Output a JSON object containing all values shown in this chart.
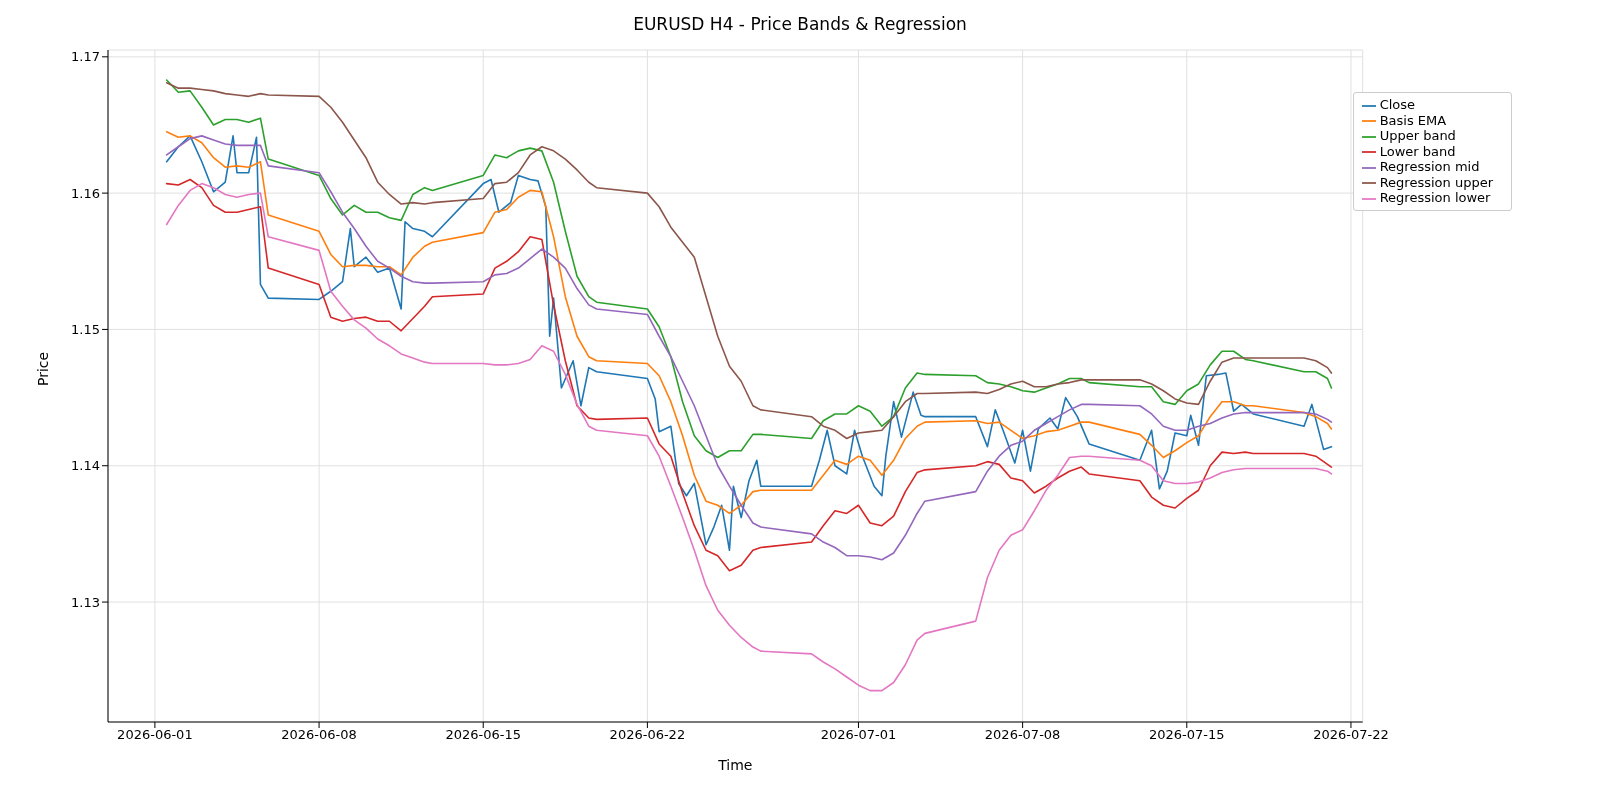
{
  "chart_data": {
    "type": "line",
    "title": "EURUSD H4 - Price Bands & Regression",
    "xlabel": "Time",
    "ylabel": "Price",
    "xlim": [
      "2026-05-30T00:00",
      "2026-07-22T12:00"
    ],
    "xticks": [
      "2026-06-01",
      "2026-06-08",
      "2026-06-15",
      "2026-06-22",
      "2026-07-01",
      "2026-07-08",
      "2026-07-15",
      "2026-07-22"
    ],
    "ylim": [
      1.1212,
      1.1705
    ],
    "yticks": [
      1.13,
      1.14,
      1.15,
      1.16,
      1.17
    ],
    "grid": true,
    "legend": "top right",
    "x": [
      "2026-06-01T12:00",
      "2026-06-02T00:00",
      "2026-06-02T12:00",
      "2026-06-03T00:00",
      "2026-06-03T12:00",
      "2026-06-04T00:00",
      "2026-06-04T12:00",
      "2026-06-05T00:00",
      "2026-06-05T12:00",
      "2026-06-05T20:00",
      "2026-06-08T00:00",
      "2026-06-08T12:00",
      "2026-06-09T00:00",
      "2026-06-09T12:00",
      "2026-06-10T00:00",
      "2026-06-10T12:00",
      "2026-06-11T00:00",
      "2026-06-11T12:00",
      "2026-06-12T00:00",
      "2026-06-12T12:00",
      "2026-06-12T20:00",
      "2026-06-15T00:00",
      "2026-06-15T12:00",
      "2026-06-16T00:00",
      "2026-06-16T12:00",
      "2026-06-17T00:00",
      "2026-06-17T12:00",
      "2026-06-18T00:00",
      "2026-06-18T12:00",
      "2026-06-19T00:00",
      "2026-06-19T12:00",
      "2026-06-19T20:00",
      "2026-06-22T00:00",
      "2026-06-22T12:00",
      "2026-06-23T00:00",
      "2026-06-23T12:00",
      "2026-06-24T00:00",
      "2026-06-24T12:00",
      "2026-06-25T00:00",
      "2026-06-25T12:00",
      "2026-06-26T00:00",
      "2026-06-26T12:00",
      "2026-06-26T20:00",
      "2026-06-29T00:00",
      "2026-06-29T12:00",
      "2026-06-30T00:00",
      "2026-06-30T12:00",
      "2026-07-01T00:00",
      "2026-07-01T12:00",
      "2026-07-02T00:00",
      "2026-07-02T12:00",
      "2026-07-03T00:00",
      "2026-07-03T12:00",
      "2026-07-03T20:00",
      "2026-07-06T00:00",
      "2026-07-06T12:00",
      "2026-07-07T00:00",
      "2026-07-07T12:00",
      "2026-07-08T00:00",
      "2026-07-08T12:00",
      "2026-07-09T00:00",
      "2026-07-09T12:00",
      "2026-07-10T00:00",
      "2026-07-10T12:00",
      "2026-07-10T20:00",
      "2026-07-13T00:00",
      "2026-07-13T12:00",
      "2026-07-14T00:00",
      "2026-07-14T12:00",
      "2026-07-15T00:00",
      "2026-07-15T12:00",
      "2026-07-16T00:00",
      "2026-07-16T12:00",
      "2026-07-17T00:00",
      "2026-07-17T12:00",
      "2026-07-17T20:00",
      "2026-07-20T00:00",
      "2026-07-20T12:00",
      "2026-07-21T00:00",
      "2026-07-21T04:00"
    ],
    "series": [
      {
        "name": "Close",
        "color": "#1f77b4",
        "x": [
          "2026-06-01T12:00",
          "2026-06-02T00:00",
          "2026-06-02T12:00",
          "2026-06-03T00:00",
          "2026-06-03T12:00",
          "2026-06-04T00:00",
          "2026-06-04T08:00",
          "2026-06-04T12:00",
          "2026-06-05T00:00",
          "2026-06-05T08:00",
          "2026-06-05T12:00",
          "2026-06-05T20:00",
          "2026-06-08T00:00",
          "2026-06-08T12:00",
          "2026-06-09T00:00",
          "2026-06-09T08:00",
          "2026-06-09T12:00",
          "2026-06-10T00:00",
          "2026-06-10T12:00",
          "2026-06-11T00:00",
          "2026-06-11T12:00",
          "2026-06-11T16:00",
          "2026-06-12T00:00",
          "2026-06-12T12:00",
          "2026-06-12T20:00",
          "2026-06-15T00:00",
          "2026-06-15T08:00",
          "2026-06-15T16:00",
          "2026-06-16T04:00",
          "2026-06-16T12:00",
          "2026-06-17T00:00",
          "2026-06-17T08:00",
          "2026-06-17T16:00",
          "2026-06-17T20:00",
          "2026-06-18T00:00",
          "2026-06-18T08:00",
          "2026-06-18T20:00",
          "2026-06-19T04:00",
          "2026-06-19T12:00",
          "2026-06-19T20:00",
          "2026-06-22T00:00",
          "2026-06-22T08:00",
          "2026-06-22T12:00",
          "2026-06-23T00:00",
          "2026-06-23T08:00",
          "2026-06-23T16:00",
          "2026-06-24T00:00",
          "2026-06-24T12:00",
          "2026-06-24T20:00",
          "2026-06-25T04:00",
          "2026-06-25T12:00",
          "2026-06-25T16:00",
          "2026-06-26T00:00",
          "2026-06-26T08:00",
          "2026-06-26T16:00",
          "2026-06-26T20:00",
          "2026-06-29T00:00",
          "2026-06-29T08:00",
          "2026-06-29T16:00",
          "2026-06-30T00:00",
          "2026-06-30T12:00",
          "2026-06-30T20:00",
          "2026-07-01T04:00",
          "2026-07-01T16:00",
          "2026-07-02T00:00",
          "2026-07-02T04:00",
          "2026-07-02T12:00",
          "2026-07-02T20:00",
          "2026-07-03T08:00",
          "2026-07-03T16:00",
          "2026-07-03T20:00",
          "2026-07-06T00:00",
          "2026-07-06T12:00",
          "2026-07-06T20:00",
          "2026-07-07T04:00",
          "2026-07-07T16:00",
          "2026-07-08T00:00",
          "2026-07-08T08:00",
          "2026-07-08T16:00",
          "2026-07-09T04:00",
          "2026-07-09T12:00",
          "2026-07-09T20:00",
          "2026-07-10T08:00",
          "2026-07-10T20:00",
          "2026-07-13T00:00",
          "2026-07-13T12:00",
          "2026-07-13T20:00",
          "2026-07-14T04:00",
          "2026-07-14T12:00",
          "2026-07-15T00:00",
          "2026-07-15T04:00",
          "2026-07-15T12:00",
          "2026-07-15T20:00",
          "2026-07-16T08:00",
          "2026-07-16T16:00",
          "2026-07-17T00:00",
          "2026-07-17T08:00",
          "2026-07-17T20:00",
          "2026-07-20T00:00",
          "2026-07-20T08:00",
          "2026-07-20T20:00",
          "2026-07-21T04:00"
        ],
        "values": [
          1.1623,
          1.1634,
          1.1642,
          1.1623,
          1.1601,
          1.1608,
          1.1642,
          1.1615,
          1.1615,
          1.1641,
          1.1533,
          1.1523,
          1.1522,
          1.1528,
          1.1535,
          1.1574,
          1.1546,
          1.1553,
          1.1542,
          1.1545,
          1.1515,
          1.1579,
          1.1574,
          1.1572,
          1.1568,
          1.1607,
          1.161,
          1.1586,
          1.1593,
          1.1613,
          1.161,
          1.1609,
          1.159,
          1.1495,
          1.1523,
          1.1457,
          1.1477,
          1.1444,
          1.1472,
          1.1469,
          1.1464,
          1.1449,
          1.1425,
          1.1429,
          1.1387,
          1.1378,
          1.1387,
          1.1342,
          1.1355,
          1.1371,
          1.1338,
          1.1385,
          1.1362,
          1.1389,
          1.1404,
          1.1385,
          1.1385,
          1.1404,
          1.1426,
          1.14,
          1.1394,
          1.1426,
          1.1407,
          1.1385,
          1.1378,
          1.1407,
          1.1447,
          1.1421,
          1.1454,
          1.1437,
          1.1436,
          1.1436,
          1.1414,
          1.1441,
          1.1426,
          1.1402,
          1.1426,
          1.1396,
          1.1427,
          1.1435,
          1.1427,
          1.145,
          1.1436,
          1.1416,
          1.1404,
          1.1426,
          1.1383,
          1.1396,
          1.1424,
          1.1422,
          1.1437,
          1.1415,
          1.1466,
          1.1467,
          1.1468,
          1.144,
          1.1445,
          1.1438,
          1.1429,
          1.1445,
          1.1412,
          1.1414
        ]
      },
      {
        "name": "Basis EMA",
        "color": "#ff7f0e",
        "values": [
          1.1645,
          1.1641,
          1.1642,
          1.1637,
          1.1626,
          1.1619,
          1.162,
          1.1619,
          1.1623,
          1.1584,
          1.1572,
          1.1555,
          1.1546,
          1.1547,
          1.1547,
          1.1546,
          1.1546,
          1.154,
          1.1553,
          1.1561,
          1.1564,
          1.1571,
          1.1586,
          1.1588,
          1.1597,
          1.1602,
          1.1601,
          1.1568,
          1.1524,
          1.1495,
          1.148,
          1.1477,
          1.1475,
          1.1466,
          1.1447,
          1.1422,
          1.1393,
          1.1374,
          1.1371,
          1.1365,
          1.1371,
          1.1381,
          1.1382,
          1.1382,
          1.1393,
          1.1404,
          1.1401,
          1.1407,
          1.1404,
          1.1393,
          1.1404,
          1.142,
          1.1429,
          1.1432,
          1.1433,
          1.1431,
          1.1432,
          1.1426,
          1.142,
          1.1422,
          1.1425,
          1.1426,
          1.1429,
          1.1432,
          1.1432,
          1.1423,
          1.1415,
          1.1406,
          1.1411,
          1.1417,
          1.1422,
          1.1436,
          1.1447,
          1.1447,
          1.1444,
          1.1444,
          1.1439,
          1.1436,
          1.1431,
          1.1427
        ]
      },
      {
        "name": "Upper band",
        "color": "#2ca02c",
        "values": [
          1.1683,
          1.1674,
          1.1675,
          1.1663,
          1.165,
          1.1654,
          1.1654,
          1.1652,
          1.1655,
          1.1625,
          1.1613,
          1.1596,
          1.1584,
          1.1591,
          1.1586,
          1.1586,
          1.1582,
          1.158,
          1.1599,
          1.1604,
          1.1602,
          1.1613,
          1.1628,
          1.1626,
          1.1631,
          1.1633,
          1.1631,
          1.1608,
          1.1572,
          1.1539,
          1.1524,
          1.152,
          1.1515,
          1.1502,
          1.148,
          1.1447,
          1.1422,
          1.1411,
          1.1406,
          1.1411,
          1.1411,
          1.1423,
          1.1423,
          1.142,
          1.1433,
          1.1438,
          1.1438,
          1.1444,
          1.144,
          1.1429,
          1.1436,
          1.1457,
          1.1468,
          1.1467,
          1.1466,
          1.1461,
          1.146,
          1.1458,
          1.1455,
          1.1454,
          1.1457,
          1.146,
          1.1464,
          1.1464,
          1.1461,
          1.1458,
          1.1458,
          1.1447,
          1.1445,
          1.1455,
          1.146,
          1.1474,
          1.1484,
          1.1484,
          1.1478,
          1.1477,
          1.1469,
          1.1469,
          1.1464,
          1.1457
        ]
      },
      {
        "name": "Lower band",
        "color": "#d62728",
        "values": [
          1.1607,
          1.1606,
          1.161,
          1.1604,
          1.1591,
          1.1586,
          1.1586,
          1.1588,
          1.159,
          1.1545,
          1.1533,
          1.1509,
          1.1506,
          1.1508,
          1.1509,
          1.1506,
          1.1506,
          1.1499,
          1.1508,
          1.1517,
          1.1524,
          1.1526,
          1.1545,
          1.155,
          1.1557,
          1.1568,
          1.1566,
          1.1518,
          1.1477,
          1.1444,
          1.1435,
          1.1434,
          1.1435,
          1.1416,
          1.1407,
          1.138,
          1.1356,
          1.1338,
          1.1334,
          1.1323,
          1.1327,
          1.1338,
          1.134,
          1.1344,
          1.1356,
          1.1367,
          1.1365,
          1.1371,
          1.1358,
          1.1356,
          1.1363,
          1.1381,
          1.1395,
          1.1397,
          1.14,
          1.1403,
          1.1401,
          1.1391,
          1.1389,
          1.138,
          1.1385,
          1.1391,
          1.1396,
          1.1399,
          1.1394,
          1.1389,
          1.1377,
          1.1371,
          1.1369,
          1.1376,
          1.1382,
          1.14,
          1.141,
          1.1409,
          1.141,
          1.1409,
          1.1409,
          1.1407,
          1.1401,
          1.1399
        ]
      },
      {
        "name": "Regression mid",
        "color": "#9467bd",
        "values": [
          1.1628,
          1.1634,
          1.164,
          1.1642,
          1.1639,
          1.1636,
          1.1635,
          1.1635,
          1.1635,
          1.162,
          1.1615,
          1.1601,
          1.1586,
          1.1574,
          1.1561,
          1.155,
          1.1545,
          1.1539,
          1.1535,
          1.1534,
          1.1534,
          1.1535,
          1.154,
          1.1541,
          1.1545,
          1.1552,
          1.1559,
          1.1553,
          1.1545,
          1.153,
          1.1518,
          1.1515,
          1.1511,
          1.1495,
          1.148,
          1.1462,
          1.1444,
          1.1422,
          1.14,
          1.1385,
          1.1371,
          1.1358,
          1.1355,
          1.135,
          1.1344,
          1.134,
          1.1334,
          1.1334,
          1.1333,
          1.1331,
          1.1336,
          1.1349,
          1.1365,
          1.1374,
          1.1381,
          1.1396,
          1.1407,
          1.1415,
          1.1418,
          1.1426,
          1.1431,
          1.1436,
          1.1441,
          1.1445,
          1.1445,
          1.1444,
          1.1438,
          1.1429,
          1.1426,
          1.1426,
          1.1429,
          1.1431,
          1.1435,
          1.1438,
          1.1439,
          1.1439,
          1.1439,
          1.1438,
          1.1434,
          1.1432
        ]
      },
      {
        "name": "Regression upper",
        "color": "#8c564b",
        "values": [
          1.1681,
          1.1677,
          1.1677,
          1.1676,
          1.1675,
          1.1673,
          1.1672,
          1.1671,
          1.1673,
          1.1672,
          1.1671,
          1.1663,
          1.1652,
          1.1639,
          1.1626,
          1.1608,
          1.1599,
          1.1592,
          1.1593,
          1.1592,
          1.1593,
          1.1596,
          1.1607,
          1.1608,
          1.1615,
          1.1628,
          1.1634,
          1.1631,
          1.1625,
          1.1617,
          1.1608,
          1.1604,
          1.16,
          1.159,
          1.1575,
          1.1564,
          1.1553,
          1.1524,
          1.1495,
          1.1473,
          1.1462,
          1.1444,
          1.1441,
          1.1436,
          1.1429,
          1.1426,
          1.142,
          1.1424,
          1.1425,
          1.1426,
          1.1436,
          1.1447,
          1.1453,
          1.1453,
          1.1454,
          1.1453,
          1.1456,
          1.146,
          1.1462,
          1.1458,
          1.1458,
          1.146,
          1.1461,
          1.1463,
          1.1463,
          1.1463,
          1.146,
          1.1455,
          1.1449,
          1.1446,
          1.1445,
          1.1462,
          1.1476,
          1.1479,
          1.1479,
          1.1479,
          1.1479,
          1.1477,
          1.1472,
          1.1468
        ]
      },
      {
        "name": "Regression lower",
        "color": "#e377c2",
        "values": [
          1.1577,
          1.1591,
          1.1602,
          1.1607,
          1.1604,
          1.1599,
          1.1597,
          1.1599,
          1.16,
          1.1568,
          1.1558,
          1.1528,
          1.1517,
          1.1507,
          1.1501,
          1.1493,
          1.1488,
          1.1482,
          1.1479,
          1.1476,
          1.1475,
          1.1475,
          1.1474,
          1.1474,
          1.1475,
          1.1478,
          1.1488,
          1.1484,
          1.1467,
          1.1445,
          1.1429,
          1.1426,
          1.1422,
          1.1407,
          1.1385,
          1.1362,
          1.1338,
          1.1312,
          1.1294,
          1.1283,
          1.1274,
          1.1267,
          1.1264,
          1.1262,
          1.1256,
          1.1251,
          1.1245,
          1.1239,
          1.1235,
          1.1235,
          1.1241,
          1.1254,
          1.1272,
          1.1277,
          1.1286,
          1.1318,
          1.1338,
          1.1349,
          1.1353,
          1.1367,
          1.1382,
          1.1393,
          1.1406,
          1.1407,
          1.1407,
          1.1404,
          1.14,
          1.1389,
          1.1387,
          1.1387,
          1.1388,
          1.1391,
          1.1395,
          1.1397,
          1.1398,
          1.1398,
          1.1398,
          1.1398,
          1.1396,
          1.1394
        ]
      }
    ]
  }
}
